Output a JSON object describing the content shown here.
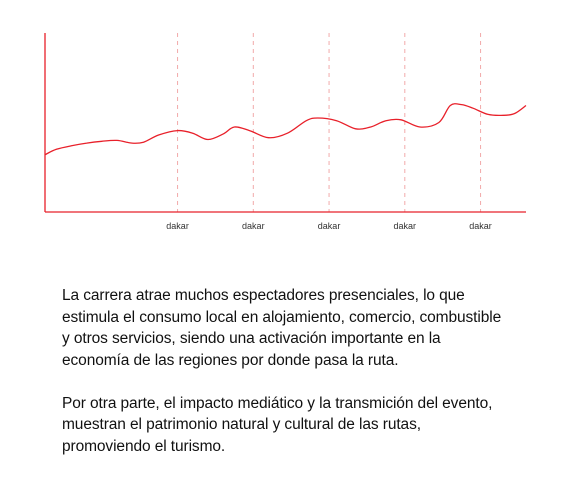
{
  "colors": {
    "line": "#e8202a",
    "guide": "#f2aaaa",
    "text": "#111111"
  },
  "chart_data": {
    "type": "line",
    "title": "",
    "xlabel": "",
    "ylabel": "",
    "x_ticks": [
      "dakar",
      "dakar",
      "dakar",
      "dakar",
      "dakar"
    ],
    "x_tick_positions": [
      1,
      2,
      3,
      4,
      5
    ],
    "xlim": [
      -0.75,
      5.6
    ],
    "ylim": [
      0,
      100
    ],
    "grid": "vertical dashed at ticks",
    "legend": "none",
    "series": [
      {
        "x": [
          -0.75,
          -0.6,
          -0.4,
          -0.2,
          0,
          0.2,
          0.4,
          0.55,
          0.75,
          1.0,
          1.2,
          1.4,
          1.6,
          1.75,
          1.95,
          2.2,
          2.45,
          2.7,
          2.85,
          3.1,
          3.35,
          3.55,
          3.75,
          3.95,
          4.2,
          4.45,
          4.6,
          4.75,
          4.9,
          5.1,
          5.3,
          5.45,
          5.6
        ],
        "y": [
          32.0,
          35.0,
          37.0,
          38.5,
          39.5,
          40.0,
          38.5,
          39.0,
          43.0,
          45.5,
          44.0,
          40.5,
          43.5,
          47.5,
          45.5,
          41.5,
          44.0,
          51.0,
          52.5,
          51.0,
          46.5,
          47.5,
          51.0,
          51.5,
          47.5,
          50.0,
          59.5,
          60.0,
          58.0,
          54.5,
          54.0,
          55.0,
          59.5
        ]
      }
    ]
  },
  "text": {
    "paragraph_1": "La carrera atrae muchos espectadores presenciales, lo que estimula el consumo local en alojamiento, comercio, combustible y otros servicios, siendo una activación importante en la economía de las regiones por donde pasa la ruta.",
    "paragraph_2": "Por otra parte, el impacto mediático y la transmición del evento, muestran el patrimonio natural y cultural de las rutas, promoviendo el turismo."
  }
}
